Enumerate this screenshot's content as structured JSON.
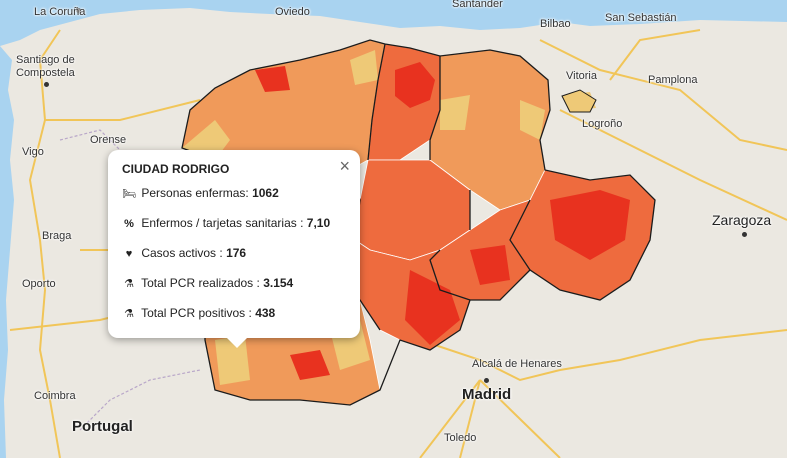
{
  "popup": {
    "title": "CIUDAD RODRIGO",
    "close_icon": "×",
    "rows": [
      {
        "icon": "bed-icon",
        "glyph": "🛏",
        "label": "Personas enfermas:",
        "value": "1062"
      },
      {
        "icon": "percent-icon",
        "glyph": "%",
        "label": "Enfermos / tarjetas sanitarias :",
        "value": "7,10"
      },
      {
        "icon": "heartbeat-icon",
        "glyph": "♥",
        "label": "Casos activos :",
        "value": "176"
      },
      {
        "icon": "flask-icon",
        "glyph": "⚗",
        "label": "Total PCR realizados :",
        "value": "3.154"
      },
      {
        "icon": "flask-icon",
        "glyph": "⚗",
        "label": "Total PCR positivos :",
        "value": "438"
      }
    ]
  },
  "cities": {
    "la_coruna": "La Coruña",
    "oviedo": "Oviedo",
    "santander": "Santander",
    "bilbao": "Bilbao",
    "san_sebastian": "San Sebastián",
    "santiago_1": "Santiago de",
    "santiago_2": "Compostela",
    "vitoria": "Vitoria",
    "pamplona": "Pamplona",
    "logrono": "Logroño",
    "orense": "Orense",
    "vigo": "Vigo",
    "braga": "Braga",
    "zaragoza": "Zaragoza",
    "oporto": "Oporto",
    "alcala": "Alcalá de Henares",
    "madrid": "Madrid",
    "coimbra": "Coimbra",
    "toledo": "Toledo"
  },
  "countries": {
    "portugal": "Portugal"
  },
  "colors": {
    "sea": "#a9d3f0",
    "land": "#ebe8e1",
    "low": "#eec977",
    "mid": "#f09a5a",
    "high": "#ee6b3e",
    "max": "#e8321f",
    "border": "#1b1b1b",
    "road": "#f5c044"
  }
}
